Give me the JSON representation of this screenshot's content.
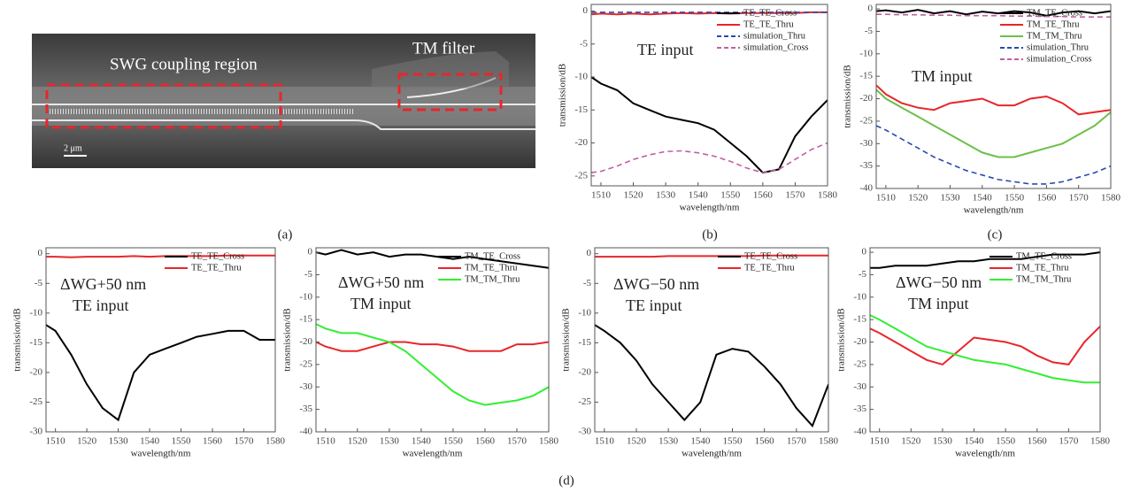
{
  "figure_a": {
    "labels": [
      "SWG coupling region",
      "TM filter"
    ],
    "scale_bar": "2 μm"
  },
  "panel_labels": [
    "(a)",
    "(b)",
    "(c)",
    "(d)"
  ],
  "chart_data": [
    {
      "type": "line",
      "annotations": [
        "TE input"
      ],
      "y_label": "transmission/dB",
      "x_label": "wavelength/nm",
      "x": [
        1507,
        1510,
        1515,
        1520,
        1525,
        1530,
        1535,
        1540,
        1545,
        1550,
        1555,
        1560,
        1565,
        1570,
        1575,
        1580
      ],
      "xlim": [
        1507,
        1580
      ],
      "xticks": [
        1510,
        1520,
        1530,
        1540,
        1550,
        1560,
        1570,
        1580
      ],
      "ylim": [
        -26.5,
        1
      ],
      "yticks": [
        0,
        -5,
        -10,
        -15,
        -20,
        -25
      ],
      "legend": "upper right",
      "series": [
        {
          "name": "TE_TE_Cross",
          "color": "#000000",
          "dash": false,
          "values": [
            -10,
            -11,
            -12,
            -14,
            -15,
            -16,
            -16.5,
            -17,
            -18,
            -20,
            -22,
            -24.5,
            -24,
            -19,
            -16,
            -13.5
          ]
        },
        {
          "name": "TE_TE_Thru",
          "color": "#e8262a",
          "dash": false,
          "values": [
            -0.5,
            -0.4,
            -0.5,
            -0.4,
            -0.5,
            -0.4,
            -0.3,
            -0.4,
            -0.3,
            -0.4,
            -0.3,
            -0.3,
            -0.3,
            -0.3,
            -0.2,
            -0.2
          ]
        },
        {
          "name": "simulation_Thru",
          "color": "#2a4ab0",
          "dash": true,
          "values": [
            -0.2,
            -0.2,
            -0.2,
            -0.2,
            -0.2,
            -0.2,
            -0.2,
            -0.2,
            -0.2,
            -0.2,
            -0.2,
            -0.2,
            -0.2,
            -0.2,
            -0.2,
            -0.2
          ]
        },
        {
          "name": "simulation_Cross",
          "color": "#c060a0",
          "dash": true,
          "values": [
            -24.5,
            -24.3,
            -23.5,
            -22.5,
            -21.8,
            -21.3,
            -21.2,
            -21.5,
            -22,
            -22.8,
            -23.8,
            -24.5,
            -24,
            -22.5,
            -21,
            -20
          ]
        }
      ]
    },
    {
      "type": "line",
      "annotations": [
        "TM input"
      ],
      "y_label": "transmission/dB",
      "x_label": "wavelength/nm",
      "x": [
        1507,
        1510,
        1515,
        1520,
        1525,
        1530,
        1535,
        1540,
        1545,
        1550,
        1555,
        1560,
        1565,
        1570,
        1575,
        1580
      ],
      "xlim": [
        1507,
        1580
      ],
      "xticks": [
        1510,
        1520,
        1530,
        1540,
        1550,
        1560,
        1570,
        1580
      ],
      "ylim": [
        -40,
        1
      ],
      "yticks": [
        0,
        -5,
        -10,
        -15,
        -20,
        -25,
        -30,
        -35,
        -40
      ],
      "legend": "upper right",
      "series": [
        {
          "name": "TM_TE_Cross",
          "color": "#000000",
          "dash": false,
          "values": [
            -0.5,
            -0.3,
            -0.8,
            -0.2,
            -1,
            -0.5,
            -1.2,
            -0.6,
            -1,
            -0.5,
            -0.8,
            -1.5,
            -0.8,
            -0.5,
            -1,
            -0.5
          ]
        },
        {
          "name": "TM_TE_Thru",
          "color": "#e8262a",
          "dash": false,
          "values": [
            -17,
            -19,
            -21,
            -22,
            -22.5,
            -21,
            -20.5,
            -20,
            -21.5,
            -21.5,
            -20,
            -19.5,
            -21,
            -23.5,
            -23,
            -22.5
          ]
        },
        {
          "name": "TM_TM_Thru",
          "color": "#6cc04a",
          "dash": false,
          "values": [
            -18,
            -20,
            -22,
            -24,
            -26,
            -28,
            -30,
            -32,
            -33,
            -33,
            -32,
            -31,
            -30,
            -28,
            -26,
            -23
          ]
        },
        {
          "name": "simulation_Thru",
          "color": "#2a4ab0",
          "dash": true,
          "values": [
            -26,
            -27,
            -29,
            -31,
            -33,
            -34.5,
            -36,
            -37,
            -38,
            -38.5,
            -39,
            -39,
            -38.5,
            -37.5,
            -36.5,
            -35
          ]
        },
        {
          "name": "simulation_Cross",
          "color": "#c060a0",
          "dash": true,
          "values": [
            -1.2,
            -1.2,
            -1.3,
            -1.3,
            -1.4,
            -1.4,
            -1.5,
            -1.5,
            -1.5,
            -1.6,
            -1.6,
            -1.7,
            -1.7,
            -1.8,
            -1.8,
            -1.8
          ]
        }
      ]
    },
    {
      "type": "line",
      "annotations": [
        "ΔWG+50 nm",
        "TE input"
      ],
      "y_label": "transmission/dB",
      "x_label": "wavelength/nm",
      "x": [
        1507,
        1510,
        1515,
        1520,
        1525,
        1530,
        1535,
        1540,
        1545,
        1550,
        1555,
        1560,
        1565,
        1570,
        1575,
        1580
      ],
      "xlim": [
        1507,
        1580
      ],
      "xticks": [
        1510,
        1520,
        1530,
        1540,
        1550,
        1560,
        1570,
        1580
      ],
      "ylim": [
        -30,
        1
      ],
      "yticks": [
        0,
        -5,
        -10,
        -15,
        -20,
        -25,
        -30
      ],
      "legend": "upper right",
      "series": [
        {
          "name": "TE_TE_Cross",
          "color": "#000000",
          "dash": false,
          "values": [
            -12,
            -13,
            -17,
            -22,
            -26,
            -28,
            -20,
            -17,
            -16,
            -15,
            -14,
            -13.5,
            -13,
            -13,
            -14.5,
            -14.5
          ]
        },
        {
          "name": "TE_TE_Thru",
          "color": "#e8262a",
          "dash": false,
          "values": [
            -0.5,
            -0.5,
            -0.6,
            -0.5,
            -0.5,
            -0.5,
            -0.4,
            -0.5,
            -0.4,
            -0.4,
            -0.4,
            -0.4,
            -0.3,
            -0.3,
            -0.3,
            -0.3
          ]
        }
      ]
    },
    {
      "type": "line",
      "annotations": [
        "ΔWG+50 nm",
        "TM input"
      ],
      "y_label": "transmission/dB",
      "x_label": "wavelength/nm",
      "x": [
        1507,
        1510,
        1515,
        1520,
        1525,
        1530,
        1535,
        1540,
        1545,
        1550,
        1555,
        1560,
        1565,
        1570,
        1575,
        1580
      ],
      "xlim": [
        1507,
        1580
      ],
      "xticks": [
        1510,
        1520,
        1530,
        1540,
        1550,
        1560,
        1570,
        1580
      ],
      "ylim": [
        -40,
        1
      ],
      "yticks": [
        0,
        -5,
        -10,
        -15,
        -20,
        -25,
        -30,
        -35,
        -40
      ],
      "legend": "upper right",
      "series": [
        {
          "name": "TM_TE_Cross",
          "color": "#000000",
          "dash": false,
          "values": [
            0,
            -0.5,
            0.5,
            -0.5,
            0,
            -1,
            -0.5,
            -0.5,
            -1,
            -1.5,
            -1,
            -1.5,
            -2,
            -2.5,
            -3,
            -3.5
          ]
        },
        {
          "name": "TM_TE_Thru",
          "color": "#e8262a",
          "dash": false,
          "values": [
            -20,
            -21,
            -22,
            -22,
            -21,
            -20,
            -20,
            -20.5,
            -20.5,
            -21,
            -22,
            -22,
            -22,
            -20.5,
            -20.5,
            -20
          ]
        },
        {
          "name": "TM_TM_Thru",
          "color": "#33ee33",
          "dash": false,
          "values": [
            -16,
            -17,
            -18,
            -18,
            -19,
            -20,
            -22,
            -25,
            -28,
            -31,
            -33,
            -34,
            -33.5,
            -33,
            -32,
            -30
          ]
        }
      ]
    },
    {
      "type": "line",
      "annotations": [
        "ΔWG−50 nm",
        "TE input"
      ],
      "y_label": "transmission/dB",
      "x_label": "wavelength/nm",
      "x": [
        1507,
        1510,
        1515,
        1520,
        1525,
        1530,
        1535,
        1540,
        1545,
        1550,
        1555,
        1560,
        1565,
        1570,
        1575,
        1580
      ],
      "xlim": [
        1507,
        1580
      ],
      "xticks": [
        1510,
        1520,
        1530,
        1540,
        1550,
        1560,
        1570,
        1580
      ],
      "ylim": [
        -30,
        1
      ],
      "yticks": [
        0,
        -5,
        -10,
        -15,
        -20,
        -25,
        -30
      ],
      "legend": "upper right",
      "series": [
        {
          "name": "TE_TE_Cross",
          "color": "#000000",
          "dash": false,
          "values": [
            -12,
            -13,
            -15,
            -18,
            -22,
            -25,
            -28,
            -25,
            -17,
            -16,
            -16.5,
            -19,
            -22,
            -26,
            -29,
            -22
          ]
        },
        {
          "name": "TE_TE_Thru",
          "color": "#e8262a",
          "dash": false,
          "values": [
            -0.5,
            -0.5,
            -0.5,
            -0.5,
            -0.5,
            -0.4,
            -0.4,
            -0.4,
            -0.4,
            -0.4,
            -0.4,
            -0.3,
            -0.3,
            -0.3,
            -0.3,
            -0.3
          ]
        }
      ]
    },
    {
      "type": "line",
      "annotations": [
        "ΔWG−50 nm",
        "TM input"
      ],
      "y_label": "transmission/dB",
      "x_label": "wavelength/nm",
      "x": [
        1507,
        1510,
        1515,
        1520,
        1525,
        1530,
        1535,
        1540,
        1545,
        1550,
        1555,
        1560,
        1565,
        1570,
        1575,
        1580
      ],
      "xlim": [
        1507,
        1580
      ],
      "xticks": [
        1510,
        1520,
        1530,
        1540,
        1550,
        1560,
        1570,
        1580
      ],
      "ylim": [
        -40,
        1
      ],
      "yticks": [
        0,
        -5,
        -10,
        -15,
        -20,
        -25,
        -30,
        -35,
        -40
      ],
      "legend": "upper right",
      "series": [
        {
          "name": "TM_TE_Cross",
          "color": "#000000",
          "dash": false,
          "values": [
            -3.5,
            -3.5,
            -3,
            -3,
            -3,
            -2.5,
            -2,
            -2,
            -1.5,
            -1.5,
            -1.5,
            -1,
            -0.5,
            -0.5,
            -0.5,
            0
          ]
        },
        {
          "name": "TM_TE_Thru",
          "color": "#e8262a",
          "dash": false,
          "values": [
            -17,
            -18,
            -20,
            -22,
            -24,
            -25,
            -22,
            -19,
            -19.5,
            -20,
            -21,
            -23,
            -24.5,
            -25,
            -20,
            -16.5
          ]
        },
        {
          "name": "TM_TM_Thru",
          "color": "#33ee33",
          "dash": false,
          "values": [
            -14,
            -15,
            -17,
            -19,
            -21,
            -22,
            -23,
            -24,
            -24.5,
            -25,
            -26,
            -27,
            -28,
            -28.5,
            -29,
            -29
          ]
        }
      ]
    }
  ]
}
